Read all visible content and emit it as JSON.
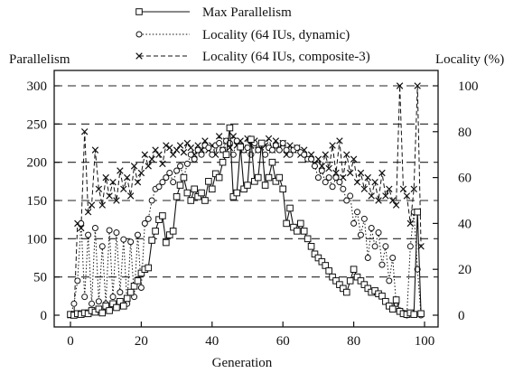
{
  "chart_data": {
    "type": "line",
    "title": "",
    "xlabel": "Generation",
    "ylabel_left": "Parallelism",
    "ylabel_right": "Locality (%)",
    "xlim": [
      0,
      100
    ],
    "ylim_left": [
      0,
      300
    ],
    "ylim_right": [
      0,
      100
    ],
    "x_ticks": [
      0,
      20,
      40,
      60,
      80,
      100
    ],
    "y_ticks_left": [
      0,
      50,
      100,
      150,
      200,
      250,
      300
    ],
    "y_ticks_right": [
      0,
      20,
      40,
      60,
      80,
      100
    ],
    "grid": "dashed horizontal",
    "legend_position": "top",
    "series": [
      {
        "name": "Max Parallelism",
        "axis": "left",
        "marker": "square",
        "line": "solid",
        "x": [
          0,
          1,
          2,
          3,
          4,
          5,
          6,
          7,
          8,
          9,
          10,
          11,
          12,
          13,
          14,
          15,
          16,
          17,
          18,
          19,
          20,
          21,
          22,
          23,
          24,
          25,
          26,
          27,
          28,
          29,
          30,
          31,
          32,
          33,
          34,
          35,
          36,
          37,
          38,
          39,
          40,
          41,
          42,
          43,
          44,
          45,
          46,
          47,
          48,
          49,
          50,
          51,
          52,
          53,
          54,
          55,
          56,
          57,
          58,
          59,
          60,
          61,
          62,
          63,
          64,
          65,
          66,
          67,
          68,
          69,
          70,
          71,
          72,
          73,
          74,
          75,
          76,
          77,
          78,
          79,
          80,
          81,
          82,
          83,
          84,
          85,
          86,
          87,
          88,
          89,
          90,
          91,
          92,
          93,
          94,
          95,
          96,
          97,
          98,
          99
        ],
        "y": [
          1,
          0,
          2,
          1,
          3,
          2,
          6,
          4,
          8,
          3,
          12,
          6,
          15,
          10,
          18,
          12,
          22,
          30,
          38,
          45,
          55,
          60,
          62,
          98,
          110,
          125,
          130,
          95,
          105,
          110,
          155,
          170,
          180,
          160,
          150,
          165,
          155,
          160,
          150,
          175,
          165,
          185,
          180,
          200,
          210,
          245,
          155,
          160,
          220,
          165,
          170,
          230,
          175,
          180,
          225,
          170,
          180,
          200,
          175,
          180,
          165,
          120,
          140,
          115,
          110,
          120,
          110,
          100,
          90,
          80,
          75,
          70,
          65,
          58,
          50,
          45,
          40,
          35,
          30,
          45,
          60,
          50,
          45,
          40,
          35,
          30,
          32,
          28,
          25,
          18,
          12,
          8,
          20,
          5,
          2,
          1,
          3,
          1,
          135,
          2
        ]
      },
      {
        "name": "Locality (64 IUs, dynamic)",
        "axis": "right",
        "marker": "circle",
        "line": "dotted",
        "x": [
          0,
          1,
          2,
          3,
          4,
          5,
          6,
          7,
          8,
          9,
          10,
          11,
          12,
          13,
          14,
          15,
          16,
          17,
          18,
          19,
          20,
          21,
          22,
          23,
          24,
          25,
          26,
          27,
          28,
          29,
          30,
          31,
          32,
          33,
          34,
          35,
          36,
          37,
          38,
          39,
          40,
          41,
          42,
          43,
          44,
          45,
          46,
          47,
          48,
          49,
          50,
          51,
          52,
          53,
          54,
          55,
          56,
          57,
          58,
          59,
          60,
          61,
          62,
          63,
          64,
          65,
          66,
          67,
          68,
          69,
          70,
          71,
          72,
          73,
          74,
          75,
          76,
          77,
          78,
          79,
          80,
          81,
          82,
          83,
          84,
          85,
          86,
          87,
          88,
          89,
          90,
          91,
          92,
          93,
          94,
          95,
          96,
          97,
          98,
          99
        ],
        "y": [
          0,
          5,
          15,
          40,
          8,
          35,
          5,
          38,
          6,
          30,
          5,
          37,
          8,
          36,
          10,
          33,
          5,
          32,
          8,
          35,
          12,
          40,
          42,
          50,
          55,
          56,
          58,
          60,
          62,
          58,
          63,
          65,
          60,
          66,
          70,
          68,
          72,
          70,
          74,
          73,
          70,
          74,
          75,
          72,
          76,
          75,
          70,
          76,
          74,
          72,
          73,
          70,
          75,
          72,
          74,
          70,
          73,
          72,
          74,
          72,
          75,
          72,
          70,
          72,
          73,
          71,
          70,
          68,
          68,
          65,
          60,
          63,
          58,
          60,
          56,
          60,
          58,
          55,
          50,
          52,
          40,
          45,
          35,
          42,
          25,
          38,
          30,
          36,
          22,
          30,
          15,
          25,
          5,
          2,
          1,
          0,
          30,
          45,
          20,
          0
        ]
      },
      {
        "name": "Locality (64 IUs, composite-3)",
        "axis": "right",
        "marker": "x",
        "line": "dashed",
        "x": [
          0,
          1,
          2,
          3,
          4,
          5,
          6,
          7,
          8,
          9,
          10,
          11,
          12,
          13,
          14,
          15,
          16,
          17,
          18,
          19,
          20,
          21,
          22,
          23,
          24,
          25,
          26,
          27,
          28,
          29,
          30,
          31,
          32,
          33,
          34,
          35,
          36,
          37,
          38,
          39,
          40,
          41,
          42,
          43,
          44,
          45,
          46,
          47,
          48,
          49,
          50,
          51,
          52,
          53,
          54,
          55,
          56,
          57,
          58,
          59,
          60,
          61,
          62,
          63,
          64,
          65,
          66,
          67,
          68,
          69,
          70,
          71,
          72,
          73,
          74,
          75,
          76,
          77,
          78,
          79,
          80,
          81,
          82,
          83,
          84,
          85,
          86,
          87,
          88,
          89,
          90,
          91,
          92,
          93,
          94,
          95,
          96,
          97,
          98,
          99
        ],
        "y": [
          0,
          0,
          40,
          38,
          80,
          45,
          48,
          72,
          55,
          48,
          60,
          52,
          58,
          50,
          63,
          55,
          60,
          52,
          65,
          58,
          62,
          70,
          65,
          68,
          72,
          70,
          66,
          74,
          73,
          70,
          72,
          74,
          71,
          75,
          73,
          70,
          74,
          72,
          76,
          72,
          74,
          70,
          78,
          72,
          76,
          73,
          78,
          74,
          76,
          72,
          77,
          74,
          76,
          72,
          75,
          74,
          77,
          72,
          76,
          73,
          75,
          70,
          74,
          72,
          73,
          70,
          72,
          68,
          70,
          66,
          68,
          65,
          70,
          64,
          74,
          62,
          76,
          60,
          70,
          62,
          68,
          58,
          62,
          55,
          60,
          52,
          58,
          50,
          62,
          52,
          55,
          50,
          48,
          100,
          55,
          52,
          40,
          55,
          100,
          30
        ]
      }
    ]
  }
}
